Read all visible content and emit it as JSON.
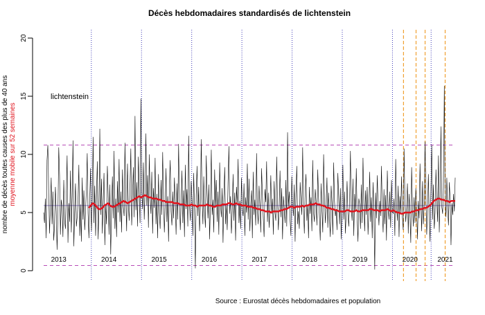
{
  "chart_data": {
    "type": "line",
    "title": "Décès hebdomadaires standardisés de lichtenstein",
    "ylabel": "nombre de décès toutes causes des plus de 40 ans",
    "ylabel2": "moyenne mobile sur 52 semaines",
    "annotation": "lichtenstein",
    "source": "Source : Eurostat décès hebdomadaires et population",
    "ylim": [
      0,
      20
    ],
    "yticks": [
      "0",
      "5",
      "10",
      "15",
      "20"
    ],
    "x_range": [
      2013.0,
      2021.2
    ],
    "year_labels": [
      {
        "label": "2013",
        "x": 2013.3
      },
      {
        "label": "2014",
        "x": 2014.3
      },
      {
        "label": "2015",
        "x": 2015.3
      },
      {
        "label": "2016",
        "x": 2016.3
      },
      {
        "label": "2017",
        "x": 2017.3
      },
      {
        "label": "2018",
        "x": 2018.3
      },
      {
        "label": "2019",
        "x": 2019.3
      },
      {
        "label": "2020",
        "x": 2020.3
      },
      {
        "label": "2021",
        "x": 2021.0
      }
    ],
    "hlines": [
      {
        "y": 10.8,
        "style": "dashed",
        "color": "#b64ab6",
        "role": "upper band"
      },
      {
        "y": 5.6,
        "style": "solid",
        "color": "#9b86d6",
        "role": "mean"
      },
      {
        "y": 0.45,
        "style": "dashed",
        "color": "#b64ab6",
        "role": "lower band"
      }
    ],
    "vlines_blue": [
      2013.95,
      2014.95,
      2015.95,
      2016.95,
      2017.95,
      2018.95,
      2019.95,
      2020.72
    ],
    "vlines_orange": [
      2020.17,
      2020.42,
      2020.6,
      2021.0
    ],
    "colors": {
      "weekly": "#000000",
      "moving_avg": "#e0141e",
      "blue_lines": "#3a36b5",
      "orange_lines": "#f0a030"
    },
    "series": [
      {
        "values": [
          5.0,
          4.1,
          6.2,
          2.8,
          9.5,
          10.8,
          7.0,
          3.2,
          5.5,
          8.0,
          4.0,
          6.8,
          2.6,
          3.9,
          7.2,
          5.1,
          1.8,
          4.7,
          10.6,
          8.2,
          3.1,
          6.1,
          5.4,
          2.9,
          7.8,
          4.3,
          3.6,
          6.7,
          9.9,
          2.4,
          5.8,
          4.2,
          8.6,
          3.3,
          6.4,
          11.2,
          2.1,
          5.0,
          7.5,
          3.8,
          4.6,
          6.0,
          9.1,
          3.0,
          5.7,
          2.5,
          8.0,
          4.4,
          6.9,
          3.5,
          5.2,
          7.1,
          10.1,
          4.9,
          2.8,
          6.3,
          8.8,
          3.4,
          5.9,
          11.5,
          4.1,
          7.3,
          3.0,
          6.5,
          9.4,
          2.7,
          5.3,
          12.2,
          4.8,
          7.9,
          3.2,
          6.0,
          8.4,
          2.2,
          5.6,
          4.0,
          9.0,
          6.6,
          3.1,
          7.4,
          1.4,
          5.1,
          8.1,
          4.5,
          10.3,
          3.6,
          6.2,
          2.9,
          7.7,
          5.0,
          9.6,
          4.2,
          6.8,
          3.3,
          8.7,
          5.5,
          4.7,
          11.0,
          6.1,
          3.4,
          9.2,
          5.8,
          4.3,
          7.2,
          10.5,
          3.9,
          6.4,
          8.9,
          4.6,
          13.3,
          5.2,
          7.6,
          3.8,
          9.8,
          6.7,
          4.1,
          14.8,
          7.0,
          5.3,
          9.3,
          4.4,
          6.9,
          11.8,
          5.6,
          8.2,
          3.7,
          10.0,
          6.3,
          4.9,
          8.5,
          3.2,
          7.1,
          5.4,
          9.7,
          4.0,
          6.6,
          2.8,
          8.3,
          5.0,
          3.6,
          7.8,
          4.8,
          10.2,
          6.1,
          3.3,
          5.7,
          8.8,
          4.2,
          6.4,
          2.5,
          7.3,
          9.5,
          5.1,
          3.9,
          6.8,
          4.5,
          8.0,
          5.9,
          3.1,
          7.5,
          4.4,
          10.9,
          6.2,
          3.5,
          5.8,
          8.6,
          4.1,
          6.9,
          2.9,
          9.1,
          5.3,
          7.0,
          3.8,
          11.6,
          5.6,
          4.3,
          7.7,
          6.0,
          3.0,
          8.4,
          5.2,
          0.2,
          6.5,
          9.0,
          4.7,
          7.2,
          3.4,
          5.5,
          11.3,
          6.3,
          4.0,
          8.1,
          5.0,
          3.7,
          9.9,
          6.6,
          4.5,
          7.4,
          2.7,
          5.9,
          10.4,
          4.8,
          6.1,
          3.3,
          8.7,
          5.4,
          7.8,
          4.2,
          6.8,
          3.1,
          9.3,
          5.7,
          4.6,
          7.1,
          2.4,
          6.2,
          8.9,
          4.0,
          5.6,
          3.5,
          7.6,
          10.7,
          4.9,
          6.4,
          3.2,
          5.1,
          8.3,
          4.3,
          6.7,
          2.6,
          7.2,
          5.8,
          9.6,
          4.1,
          6.0,
          3.6,
          8.0,
          5.3,
          4.7,
          7.5,
          3.0,
          6.3,
          5.0,
          9.2,
          4.4,
          7.9,
          3.4,
          5.5,
          6.9,
          2.8,
          8.5,
          4.8,
          6.1,
          3.9,
          10.1,
          5.2,
          4.0,
          7.3,
          5.7,
          3.3,
          8.8,
          6.5,
          4.5,
          2.9,
          7.0,
          5.9,
          9.4,
          4.2,
          6.7,
          3.7,
          5.4,
          8.2,
          4.9,
          6.2,
          3.1,
          7.7,
          5.0,
          4.3,
          9.8,
          6.0,
          3.5,
          5.6,
          8.6,
          4.6,
          7.1,
          2.7,
          6.4,
          5.3,
          4.1,
          7.8,
          3.8,
          11.9,
          5.5,
          6.8,
          4.4,
          3.0,
          8.1,
          5.8,
          4.7,
          7.4,
          2.5,
          6.6,
          9.0,
          4.0,
          5.1,
          3.6,
          7.6,
          6.1,
          4.8,
          10.6,
          5.4,
          3.2,
          6.9,
          8.3,
          4.3,
          5.7,
          2.8,
          7.2,
          4.9,
          6.3,
          3.4,
          9.5,
          5.0,
          4.2,
          7.0,
          5.9,
          3.9,
          8.7,
          6.2,
          4.6,
          2.6,
          7.5,
          5.2,
          3.3,
          10.0,
          6.5,
          4.1,
          5.6,
          8.0,
          3.7,
          6.7,
          4.5,
          2.9,
          7.3,
          5.8,
          3.1,
          9.3,
          6.0,
          4.7,
          5.3,
          3.5,
          8.4,
          6.4,
          4.0,
          7.1,
          2.7,
          5.5,
          9.1,
          4.4,
          6.8,
          3.2,
          5.0,
          7.7,
          4.9,
          3.8,
          6.1,
          10.3,
          5.4,
          4.3,
          7.9,
          3.0,
          6.6,
          5.1,
          8.8,
          4.6,
          2.5,
          6.2,
          5.7,
          3.6,
          7.4,
          4.1,
          9.7,
          5.9,
          3.4,
          6.9,
          4.8,
          7.2,
          3.1,
          5.3,
          8.5,
          4.2,
          6.3,
          2.8,
          7.6,
          5.0,
          0.1,
          6.7,
          4.5,
          8.2,
          5.6,
          3.9,
          6.0,
          4.7,
          9.0,
          5.2,
          3.3,
          7.0,
          4.0,
          6.5,
          2.6,
          8.6,
          5.5,
          4.4,
          6.8,
          3.7,
          7.8,
          5.1,
          4.9,
          6.2,
          3.0,
          9.6,
          5.8,
          4.3,
          7.3,
          2.9,
          6.4,
          5.0,
          8.1,
          4.6,
          3.5,
          10.5,
          6.1,
          4.2,
          5.4,
          7.5,
          3.2,
          6.6,
          4.8,
          2.4,
          8.9,
          5.7,
          3.8,
          6.3,
          4.1,
          7.1,
          5.3,
          2.7,
          6.0,
          4.5,
          9.2,
          5.9,
          3.4,
          7.7,
          4.0,
          5.6,
          11.1,
          6.7,
          3.1,
          5.2,
          8.3,
          4.7,
          2.5,
          6.9,
          10.8,
          4.4,
          7.4,
          3.6,
          5.0,
          8.7,
          6.2,
          4.2,
          9.9,
          3.3,
          6.5,
          12.4,
          5.5,
          4.9,
          7.2,
          15.9,
          6.0,
          4.6,
          8.0,
          5.3,
          3.9,
          7.6,
          6.1,
          2.2,
          5.8,
          4.8,
          6.6,
          5.1,
          8.0
        ]
      },
      {
        "name": "moyenne mobile sur 52 semaines",
        "values": [
          5.4,
          5.6,
          5.8,
          5.7,
          5.5,
          5.3,
          5.3,
          5.4,
          5.6,
          5.7,
          5.8,
          5.6,
          5.5,
          5.5,
          5.6,
          5.7,
          5.8,
          5.9,
          6.0,
          5.9,
          5.8,
          5.9,
          6.0,
          6.1,
          6.2,
          6.3,
          6.4,
          6.3,
          6.4,
          6.5,
          6.4,
          6.3,
          6.3,
          6.2,
          6.2,
          6.2,
          6.1,
          6.1,
          6.0,
          6.0,
          5.9,
          5.9,
          5.9,
          5.9,
          5.8,
          5.8,
          5.8,
          5.7,
          5.7,
          5.7,
          5.6,
          5.6,
          5.6,
          5.7,
          5.6,
          5.6,
          5.5,
          5.6,
          5.6,
          5.6,
          5.6,
          5.7,
          5.6,
          5.6,
          5.5,
          5.5,
          5.6,
          5.6,
          5.6,
          5.7,
          5.7,
          5.7,
          5.8,
          5.8,
          5.7,
          5.7,
          5.8,
          5.7,
          5.7,
          5.6,
          5.6,
          5.6,
          5.5,
          5.5,
          5.5,
          5.4,
          5.4,
          5.3,
          5.3,
          5.2,
          5.2,
          5.1,
          5.1,
          5.1,
          5.0,
          5.1,
          5.1,
          5.1,
          5.1,
          5.2,
          5.2,
          5.3,
          5.3,
          5.4,
          5.5,
          5.5,
          5.4,
          5.5,
          5.5,
          5.5,
          5.6,
          5.5,
          5.6,
          5.6,
          5.7,
          5.7,
          5.7,
          5.8,
          5.7,
          5.7,
          5.6,
          5.6,
          5.5,
          5.4,
          5.4,
          5.3,
          5.3,
          5.2,
          5.2,
          5.1,
          5.1,
          5.1,
          5.1,
          5.2,
          5.2,
          5.1,
          5.1,
          5.1,
          5.2,
          5.1,
          5.1,
          5.2,
          5.2,
          5.2,
          5.2,
          5.3,
          5.3,
          5.2,
          5.2,
          5.2,
          5.1,
          5.2,
          5.2,
          5.2,
          5.3,
          5.2,
          5.1,
          5.2,
          5.1,
          5.0,
          5.0,
          4.9,
          4.9,
          5.0,
          5.0,
          5.0,
          5.0,
          5.1,
          5.1,
          5.2,
          5.2,
          5.3,
          5.3,
          5.4,
          5.4,
          5.5,
          5.6,
          5.8,
          6.0,
          6.1,
          6.2,
          6.2,
          6.1,
          6.1,
          6.0,
          6.0,
          5.9,
          6.0,
          6.0,
          6.0
        ]
      }
    ]
  }
}
